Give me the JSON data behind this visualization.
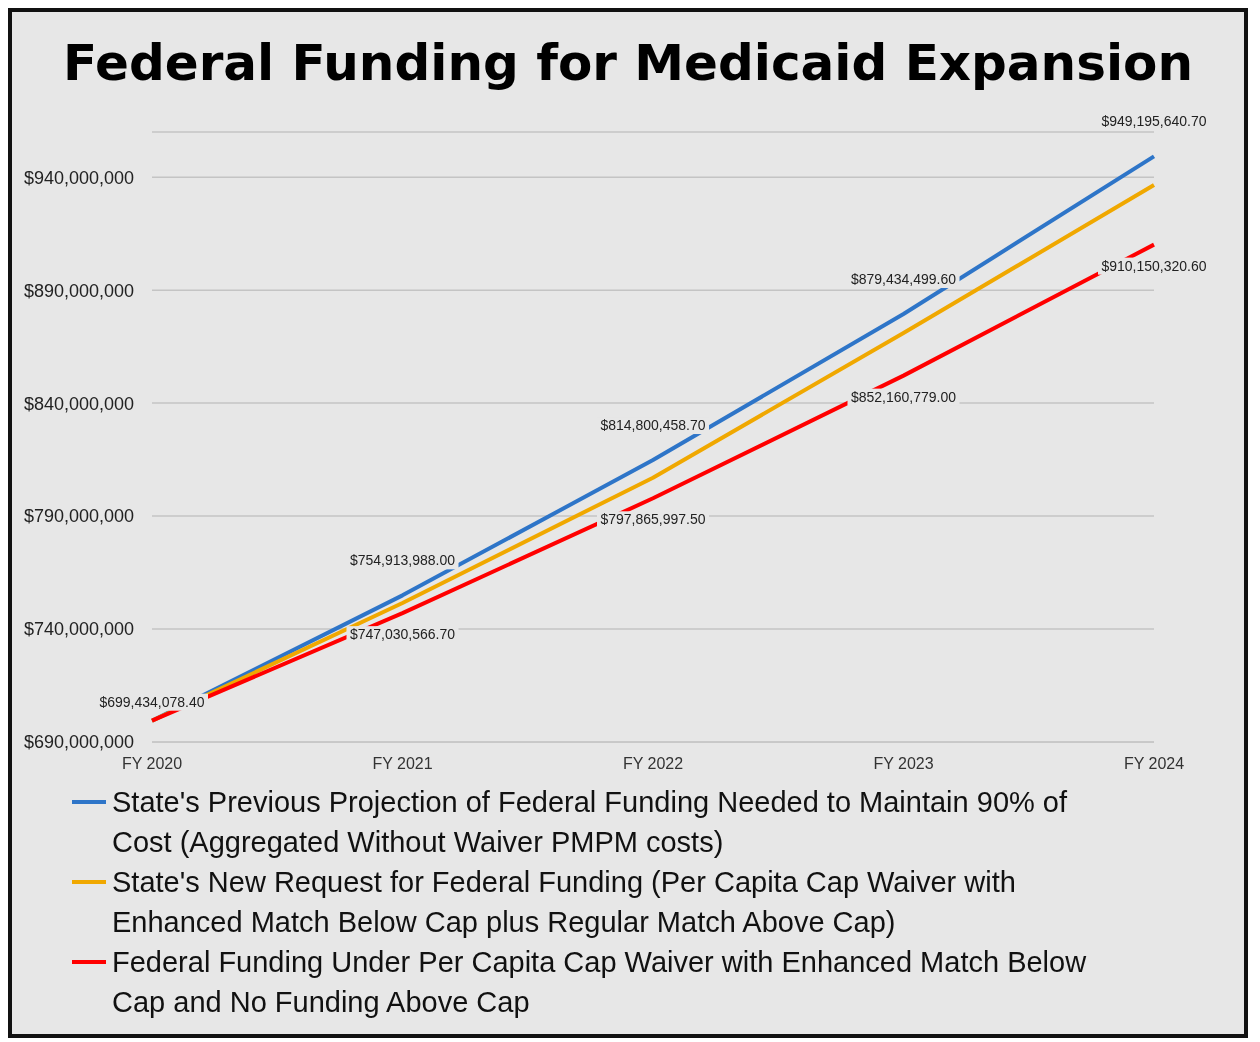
{
  "chart_data": {
    "type": "line",
    "title": "Federal Funding for Medicaid Expansion",
    "categories": [
      "FY 2020",
      "FY 2021",
      "FY 2022",
      "FY 2023",
      "FY 2024"
    ],
    "series": [
      {
        "name": "State's Previous Projection of Federal Funding Needed to Maintain 90% of Cost (Aggregated Without Waiver PMPM costs)",
        "color": "#2e75c8",
        "values": [
          699400000,
          754913988.0,
          814800458.7,
          879434499.6,
          949195640.7
        ],
        "value_labels": [
          null,
          "$754,913,988.00",
          "$814,800,458.70",
          "$879,434,499.60",
          "$949,195,640.70"
        ]
      },
      {
        "name": "State's New Request for Federal Funding (Per Capita Cap Waiver with Enhanced Match Below Cap plus Regular Match Above Cap)",
        "color": "#f0a800",
        "values": [
          699400000,
          751500000,
          807000000,
          871000000,
          936500000
        ]
      },
      {
        "name": "Federal Funding Under Per Capita Cap Waiver with Enhanced Match Below Cap and No Funding Above Cap",
        "color": "#ff0000",
        "values": [
          699434078.4,
          747030566.7,
          797865997.5,
          852160779.0,
          910150320.6
        ],
        "value_labels": [
          "$699,434,078.40",
          "$747,030,566.70",
          "$797,865,997.50",
          "$852,160,779.00",
          "$910,150,320.60"
        ]
      }
    ],
    "ylim": [
      690000000,
      960000000
    ],
    "yticks": [
      {
        "value": 690000000,
        "label": "$690,000,000"
      },
      {
        "value": 740000000,
        "label": "$740,000,000"
      },
      {
        "value": 790000000,
        "label": "$790,000,000"
      },
      {
        "value": 840000000,
        "label": "$840,000,000"
      },
      {
        "value": 890000000,
        "label": "$890,000,000"
      },
      {
        "value": 940000000,
        "label": "$940,000,000"
      }
    ],
    "grid": "y",
    "legend": "bottom",
    "marker": "none",
    "line_style": "solid"
  }
}
